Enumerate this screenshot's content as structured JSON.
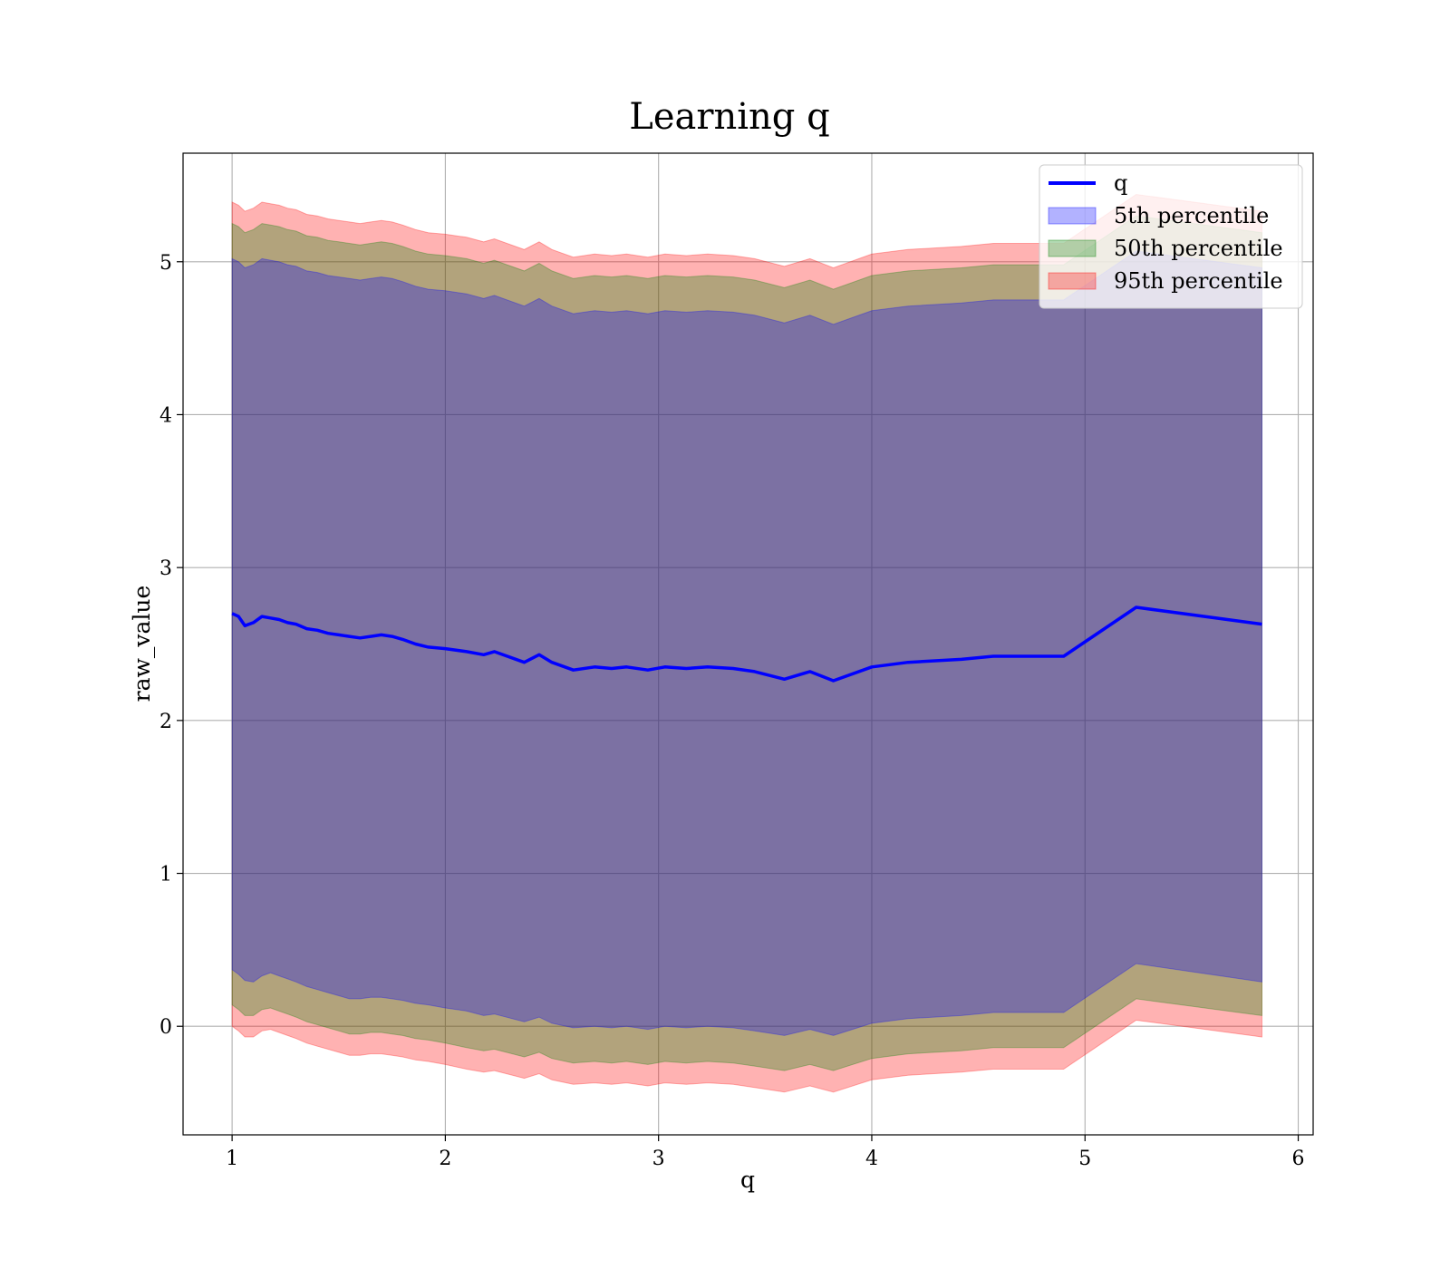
{
  "chart_data": {
    "type": "line",
    "title": "Learning q",
    "xlabel": "q",
    "ylabel": "raw_value",
    "xlim": [
      0.77,
      6.07
    ],
    "ylim": [
      -0.71,
      5.71
    ],
    "xticks": [
      1,
      2,
      3,
      4,
      5,
      6
    ],
    "yticks": [
      0,
      1,
      2,
      3,
      4,
      5
    ],
    "grid": true,
    "legend_position": "top-right",
    "x": [
      1.0,
      1.03,
      1.06,
      1.1,
      1.14,
      1.18,
      1.22,
      1.26,
      1.3,
      1.35,
      1.4,
      1.45,
      1.5,
      1.55,
      1.6,
      1.65,
      1.7,
      1.75,
      1.8,
      1.86,
      1.92,
      2.0,
      2.1,
      2.18,
      2.23,
      2.37,
      2.44,
      2.5,
      2.6,
      2.7,
      2.78,
      2.85,
      2.95,
      3.03,
      3.13,
      3.23,
      3.35,
      3.45,
      3.59,
      3.71,
      3.82,
      4.0,
      4.17,
      4.42,
      4.57,
      4.9,
      5.24,
      5.83
    ],
    "series": [
      {
        "name": "q",
        "color": "#0000ff",
        "values": [
          2.7,
          2.68,
          2.62,
          2.64,
          2.68,
          2.67,
          2.66,
          2.64,
          2.63,
          2.6,
          2.59,
          2.57,
          2.56,
          2.55,
          2.54,
          2.55,
          2.56,
          2.55,
          2.53,
          2.5,
          2.48,
          2.47,
          2.45,
          2.43,
          2.45,
          2.38,
          2.43,
          2.38,
          2.33,
          2.35,
          2.34,
          2.35,
          2.33,
          2.35,
          2.34,
          2.35,
          2.34,
          2.32,
          2.27,
          2.32,
          2.26,
          2.35,
          2.38,
          2.4,
          2.42,
          2.42,
          2.74,
          2.63
        ]
      }
    ],
    "bands": [
      {
        "name": "5th percentile",
        "color": "#0000ff",
        "opacity": 0.3,
        "lower": [
          0.37,
          0.34,
          0.3,
          0.29,
          0.33,
          0.35,
          0.33,
          0.31,
          0.29,
          0.26,
          0.24,
          0.22,
          0.2,
          0.18,
          0.18,
          0.19,
          0.19,
          0.18,
          0.17,
          0.15,
          0.14,
          0.12,
          0.1,
          0.07,
          0.08,
          0.03,
          0.06,
          0.02,
          -0.01,
          0.0,
          -0.01,
          0.0,
          -0.02,
          0.0,
          -0.01,
          0.0,
          -0.01,
          -0.03,
          -0.06,
          -0.02,
          -0.06,
          0.02,
          0.05,
          0.07,
          0.09,
          0.09,
          0.41,
          0.29
        ],
        "upper": [
          5.02,
          5.0,
          4.96,
          4.98,
          5.02,
          5.01,
          5.0,
          4.98,
          4.97,
          4.94,
          4.93,
          4.91,
          4.9,
          4.89,
          4.88,
          4.89,
          4.9,
          4.89,
          4.87,
          4.84,
          4.82,
          4.81,
          4.79,
          4.76,
          4.78,
          4.71,
          4.76,
          4.71,
          4.66,
          4.68,
          4.67,
          4.68,
          4.66,
          4.68,
          4.67,
          4.68,
          4.67,
          4.65,
          4.6,
          4.65,
          4.59,
          4.68,
          4.71,
          4.73,
          4.75,
          4.75,
          5.07,
          4.96
        ]
      },
      {
        "name": "50th percentile",
        "color": "#008000",
        "opacity": 0.3,
        "lower": [
          0.14,
          0.11,
          0.07,
          0.07,
          0.11,
          0.12,
          0.1,
          0.08,
          0.06,
          0.03,
          0.01,
          -0.01,
          -0.03,
          -0.05,
          -0.05,
          -0.04,
          -0.04,
          -0.05,
          -0.06,
          -0.08,
          -0.09,
          -0.11,
          -0.14,
          -0.16,
          -0.15,
          -0.2,
          -0.17,
          -0.21,
          -0.24,
          -0.23,
          -0.24,
          -0.23,
          -0.25,
          -0.23,
          -0.24,
          -0.23,
          -0.24,
          -0.26,
          -0.29,
          -0.25,
          -0.29,
          -0.21,
          -0.18,
          -0.16,
          -0.14,
          -0.14,
          0.18,
          0.07
        ],
        "upper": [
          5.25,
          5.23,
          5.19,
          5.21,
          5.25,
          5.24,
          5.23,
          5.21,
          5.2,
          5.17,
          5.16,
          5.14,
          5.13,
          5.12,
          5.11,
          5.12,
          5.13,
          5.12,
          5.1,
          5.07,
          5.05,
          5.04,
          5.02,
          4.99,
          5.01,
          4.94,
          4.99,
          4.94,
          4.89,
          4.91,
          4.9,
          4.91,
          4.89,
          4.91,
          4.9,
          4.91,
          4.9,
          4.88,
          4.83,
          4.88,
          4.82,
          4.91,
          4.94,
          4.96,
          4.98,
          4.98,
          5.3,
          5.19
        ]
      },
      {
        "name": "95th percentile",
        "color": "#ff0000",
        "opacity": 0.3,
        "lower": [
          0.0,
          -0.03,
          -0.07,
          -0.07,
          -0.03,
          -0.02,
          -0.04,
          -0.06,
          -0.08,
          -0.11,
          -0.13,
          -0.15,
          -0.17,
          -0.19,
          -0.19,
          -0.18,
          -0.18,
          -0.19,
          -0.2,
          -0.22,
          -0.23,
          -0.25,
          -0.28,
          -0.3,
          -0.29,
          -0.34,
          -0.31,
          -0.35,
          -0.38,
          -0.37,
          -0.38,
          -0.37,
          -0.39,
          -0.37,
          -0.38,
          -0.37,
          -0.38,
          -0.4,
          -0.43,
          -0.39,
          -0.43,
          -0.35,
          -0.32,
          -0.3,
          -0.28,
          -0.28,
          0.04,
          -0.07
        ],
        "upper": [
          5.39,
          5.37,
          5.33,
          5.35,
          5.39,
          5.38,
          5.37,
          5.35,
          5.34,
          5.31,
          5.3,
          5.28,
          5.27,
          5.26,
          5.25,
          5.26,
          5.27,
          5.26,
          5.24,
          5.21,
          5.19,
          5.18,
          5.16,
          5.13,
          5.15,
          5.08,
          5.13,
          5.08,
          5.03,
          5.05,
          5.04,
          5.05,
          5.03,
          5.05,
          5.04,
          5.05,
          5.04,
          5.02,
          4.97,
          5.02,
          4.96,
          5.05,
          5.08,
          5.1,
          5.12,
          5.12,
          5.44,
          5.33
        ]
      }
    ]
  }
}
